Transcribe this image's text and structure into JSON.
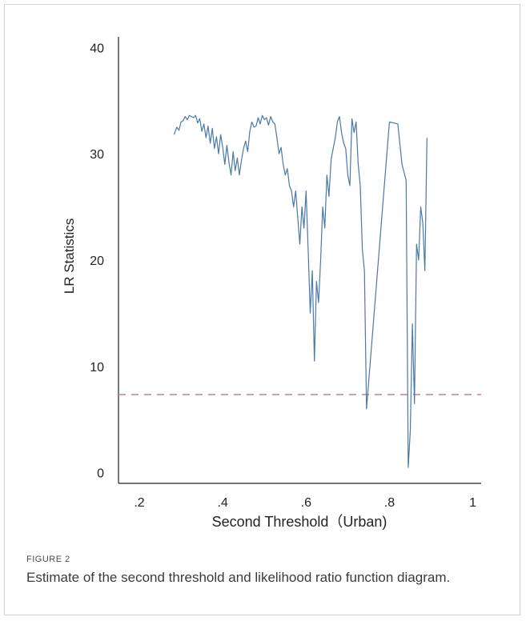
{
  "figure": {
    "label": "FIGURE 2",
    "caption": "Estimate of the second threshold and likelihood ratio function diagram."
  },
  "chart_data": {
    "type": "line",
    "title": "",
    "xlabel": "Second Threshold（Urban)",
    "ylabel": "LR Statistics",
    "xlim": [
      0.15,
      1.02
    ],
    "ylim": [
      -1,
      41
    ],
    "xticks": [
      0.2,
      0.4,
      0.6,
      0.8,
      1.0
    ],
    "xtick_labels": [
      ".2",
      ".4",
      ".6",
      ".8",
      "1"
    ],
    "yticks": [
      0,
      10,
      20,
      30,
      40
    ],
    "ytick_labels": [
      "0",
      "10",
      "20",
      "30",
      "40"
    ],
    "grid": false,
    "colors": {
      "series": "#4a78a8",
      "reference": "#c98a9a",
      "axis": "#222222"
    },
    "series": [
      {
        "x": [
          0.283,
          0.29,
          0.295,
          0.3,
          0.305,
          0.31,
          0.315,
          0.32,
          0.325,
          0.33,
          0.335,
          0.34,
          0.345,
          0.35,
          0.355,
          0.36,
          0.365,
          0.37,
          0.375,
          0.38,
          0.385,
          0.39,
          0.395,
          0.4,
          0.405,
          0.41,
          0.415,
          0.42,
          0.425,
          0.43,
          0.435,
          0.44,
          0.445,
          0.45,
          0.455,
          0.46,
          0.465,
          0.47,
          0.475,
          0.48,
          0.485,
          0.49,
          0.495,
          0.5,
          0.505,
          0.51,
          0.515,
          0.52,
          0.525,
          0.53,
          0.535,
          0.54,
          0.545,
          0.55,
          0.555,
          0.56,
          0.565,
          0.57,
          0.575,
          0.58,
          0.585,
          0.59,
          0.595,
          0.6,
          0.605,
          0.61,
          0.615,
          0.62,
          0.625,
          0.63,
          0.635,
          0.64,
          0.645,
          0.65,
          0.655,
          0.66,
          0.665,
          0.67,
          0.675,
          0.68,
          0.685,
          0.69,
          0.695,
          0.7,
          0.705,
          0.71,
          0.715,
          0.72,
          0.725,
          0.73,
          0.735,
          0.74,
          0.745,
          0.8,
          0.82,
          0.83,
          0.84,
          0.845,
          0.85,
          0.855,
          0.86,
          0.865,
          0.87,
          0.875,
          0.88,
          0.885,
          0.89
        ],
        "y": [
          31.8,
          32.5,
          32.2,
          33.0,
          33.1,
          33.5,
          33.2,
          33.6,
          33.5,
          33.4,
          33.6,
          32.9,
          33.3,
          32.1,
          32.8,
          31.5,
          32.6,
          31.0,
          32.4,
          30.5,
          31.6,
          30.0,
          31.8,
          30.6,
          29.0,
          30.8,
          29.2,
          28.0,
          30.2,
          28.4,
          29.6,
          28.0,
          29.4,
          30.5,
          31.2,
          30.2,
          32.1,
          33.0,
          32.5,
          32.6,
          33.4,
          32.8,
          33.6,
          33.2,
          33.4,
          32.7,
          33.5,
          33.0,
          32.8,
          31.5,
          30.0,
          30.6,
          29.0,
          28.0,
          28.6,
          27.0,
          26.5,
          25.0,
          26.5,
          24.0,
          21.5,
          25.0,
          23.0,
          26.5,
          21.0,
          15.0,
          19.0,
          10.5,
          18.0,
          16.0,
          20.0,
          25.0,
          23.0,
          28.0,
          26.0,
          29.5,
          30.5,
          31.5,
          33.0,
          33.5,
          32.0,
          31.0,
          30.5,
          28.0,
          27.0,
          33.3,
          32.0,
          33.0,
          29.0,
          27.0,
          21.0,
          19.0,
          6.0,
          33.0,
          32.8,
          29.0,
          27.5,
          0.5,
          4.0,
          14.0,
          6.5,
          21.5,
          20.0,
          25.0,
          23.5,
          19.0,
          31.5
        ]
      }
    ],
    "reference_line": {
      "y": 7.35,
      "style": "dashed"
    }
  }
}
